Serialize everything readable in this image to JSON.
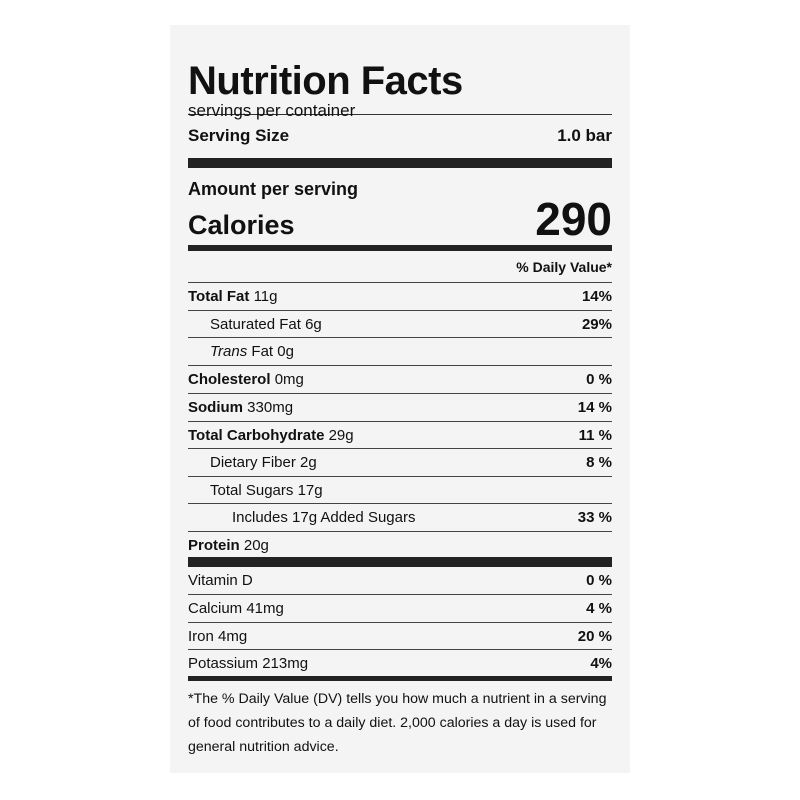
{
  "label": {
    "title": "Nutrition Facts",
    "servings_per_container": "servings per container",
    "serving_size_label": "Serving Size",
    "serving_size_value": "1.0 bar",
    "amount_per_serving": "Amount per serving",
    "calories_label": "Calories",
    "calories_value": "290",
    "daily_value_header": "% Daily Value*"
  },
  "nutrients": [
    {
      "name": "Total Fat",
      "amount": "11g",
      "dv": "14%"
    },
    {
      "name": "Saturated Fat",
      "amount": "6g",
      "dv": "29%"
    },
    {
      "name_italic": "Trans",
      "name": "Fat",
      "amount": "0g",
      "dv": ""
    },
    {
      "name": "Cholesterol",
      "amount": "0mg",
      "dv": "0 %"
    },
    {
      "name": "Sodium",
      "amount": "330mg",
      "dv": "14 %"
    },
    {
      "name": "Total Carbohydrate",
      "amount": "29g",
      "dv": "11 %"
    },
    {
      "name": "Dietary Fiber",
      "amount": "2g",
      "dv": "8 %"
    },
    {
      "name": "Total Sugars",
      "amount": "17g",
      "dv": ""
    },
    {
      "name": "Includes 17g Added Sugars",
      "amount": "",
      "dv": "33 %"
    },
    {
      "name": "Protein",
      "amount": "20g",
      "dv": ""
    }
  ],
  "vitamins": [
    {
      "name": "Vitamin D",
      "dv": "0 %"
    },
    {
      "name": "Calcium 41mg",
      "dv": "4 %"
    },
    {
      "name": "Iron 4mg",
      "dv": "20 %"
    },
    {
      "name": "Potassium 213mg",
      "dv": "4%"
    }
  ],
  "footnote": "*The % Daily Value (DV) tells you how much a nutrient in a serving of food contributes to a daily diet. 2,000 calories a day is used for general nutrition advice."
}
